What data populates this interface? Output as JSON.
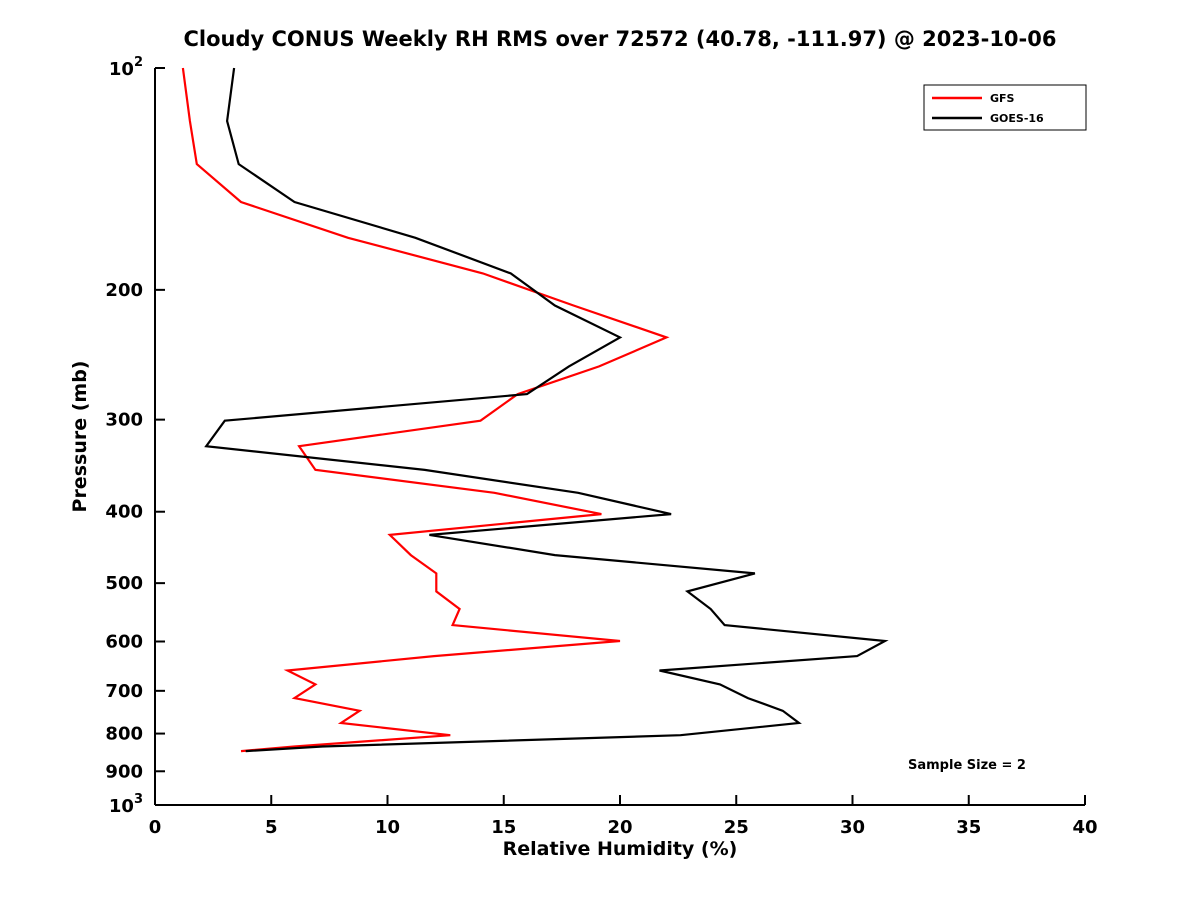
{
  "chart_data": {
    "type": "line",
    "title": "Cloudy CONUS Weekly RH RMS over 72572 (40.78, -111.97) @ 2023-10-06",
    "xlabel": "Relative Humidity (%)",
    "ylabel": "Pressure (mb)",
    "xlim": [
      0,
      40
    ],
    "ylim": [
      100,
      1000
    ],
    "y_scale": "log",
    "y_direction": "increasing-downward",
    "grid": false,
    "x_ticks": [
      0,
      5,
      10,
      15,
      20,
      25,
      30,
      35,
      40
    ],
    "y_ticks": [
      {
        "value": 100,
        "label": "10^2"
      },
      {
        "value": 200,
        "label": "200"
      },
      {
        "value": 300,
        "label": "300"
      },
      {
        "value": 400,
        "label": "400"
      },
      {
        "value": 500,
        "label": "500"
      },
      {
        "value": 600,
        "label": "600"
      },
      {
        "value": 700,
        "label": "700"
      },
      {
        "value": 800,
        "label": "800"
      },
      {
        "value": 900,
        "label": "900"
      },
      {
        "value": 1000,
        "label": "10^3"
      }
    ],
    "legend": {
      "position": "top-right",
      "entries": [
        {
          "name": "GFS",
          "color": "#FF0000"
        },
        {
          "name": "GOES-16",
          "color": "#000000"
        }
      ]
    },
    "annotation": "Sample Size = 2",
    "points_format": "[pressure_mb, rh_rms_percent]",
    "series": [
      {
        "name": "GFS",
        "color": "#FF0000",
        "points": [
          [
            100,
            1.2
          ],
          [
            118,
            1.5
          ],
          [
            135,
            1.8
          ],
          [
            152,
            3.7
          ],
          [
            170,
            8.3
          ],
          [
            190,
            14.1
          ],
          [
            210,
            18.0
          ],
          [
            232,
            22.0
          ],
          [
            254,
            19.1
          ],
          [
            277,
            15.6
          ],
          [
            301,
            14.0
          ],
          [
            326,
            6.2
          ],
          [
            351,
            6.9
          ],
          [
            377,
            14.6
          ],
          [
            403,
            19.2
          ],
          [
            430,
            10.1
          ],
          [
            458,
            11.0
          ],
          [
            485,
            12.1
          ],
          [
            513,
            12.1
          ],
          [
            542,
            13.1
          ],
          [
            570,
            12.8
          ],
          [
            599,
            20.0
          ],
          [
            628,
            12.0
          ],
          [
            657,
            5.7
          ],
          [
            686,
            6.9
          ],
          [
            716,
            6.0
          ],
          [
            745,
            8.8
          ],
          [
            774,
            8.0
          ],
          [
            804,
            12.7
          ],
          [
            833,
            6.0
          ],
          [
            845,
            3.7
          ]
        ]
      },
      {
        "name": "GOES-16",
        "color": "#000000",
        "points": [
          [
            100,
            3.4
          ],
          [
            118,
            3.1
          ],
          [
            135,
            3.6
          ],
          [
            152,
            6.0
          ],
          [
            170,
            11.2
          ],
          [
            190,
            15.3
          ],
          [
            210,
            17.2
          ],
          [
            232,
            20.0
          ],
          [
            254,
            17.8
          ],
          [
            277,
            16.0
          ],
          [
            301,
            3.0
          ],
          [
            326,
            2.2
          ],
          [
            351,
            11.6
          ],
          [
            377,
            18.2
          ],
          [
            403,
            22.2
          ],
          [
            430,
            11.8
          ],
          [
            458,
            17.2
          ],
          [
            485,
            25.8
          ],
          [
            513,
            22.9
          ],
          [
            542,
            23.9
          ],
          [
            570,
            24.5
          ],
          [
            599,
            31.4
          ],
          [
            628,
            30.2
          ],
          [
            657,
            21.7
          ],
          [
            686,
            24.3
          ],
          [
            716,
            25.5
          ],
          [
            745,
            27.0
          ],
          [
            774,
            27.7
          ],
          [
            804,
            22.6
          ],
          [
            833,
            7.2
          ],
          [
            845,
            3.9
          ]
        ]
      }
    ]
  }
}
